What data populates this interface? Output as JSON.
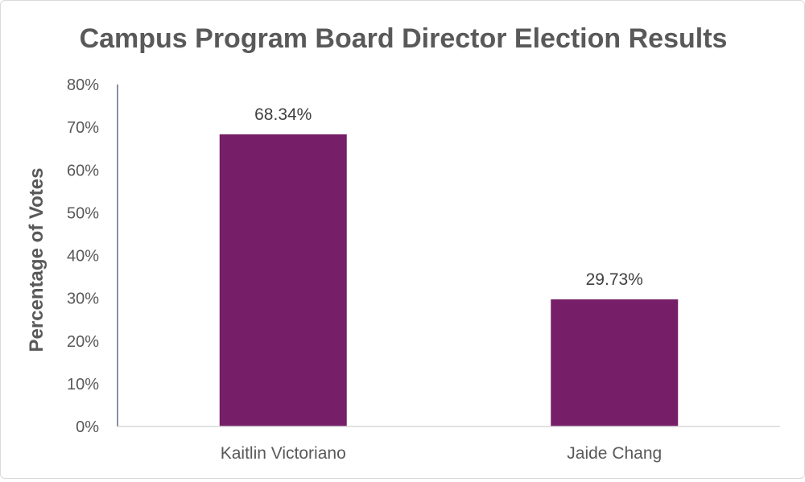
{
  "chart_data": {
    "type": "bar",
    "title": "Campus Program Board Director Election Results",
    "xlabel": "",
    "ylabel": "Percentage of Votes",
    "categories": [
      "Kaitlin Victoriano",
      "Jaide Chang"
    ],
    "values": [
      68.34,
      29.73
    ],
    "data_labels": [
      "68.34%",
      "29.73%"
    ],
    "ylim": [
      0,
      80
    ],
    "y_ticks": [
      0,
      10,
      20,
      30,
      40,
      50,
      60,
      70,
      80
    ],
    "y_tick_labels": [
      "0%",
      "10%",
      "20%",
      "30%",
      "40%",
      "50%",
      "60%",
      "70%",
      "80%"
    ],
    "grid": false,
    "legend": "none",
    "bar_color": "#761e68",
    "axis_color": "#5a6f7f"
  }
}
